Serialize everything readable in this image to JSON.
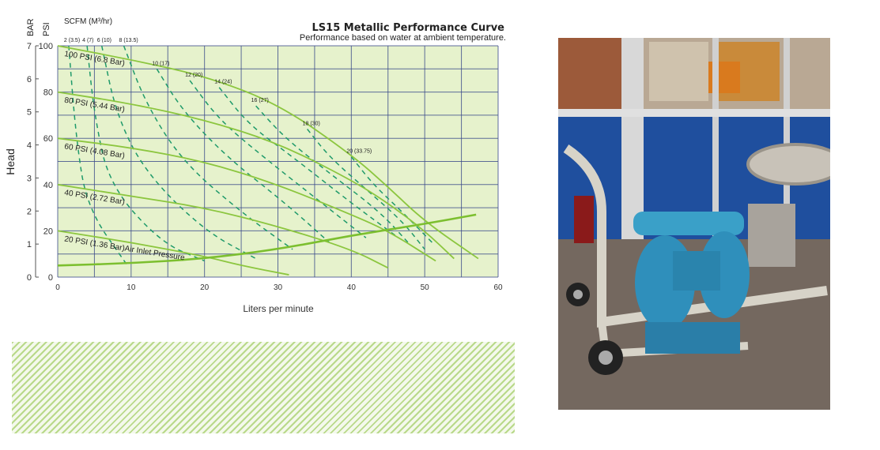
{
  "chart_data": {
    "type": "line",
    "title": "LS15 Metallic Performance Curve",
    "subtitle": "Performance based on water at ambient temperature.",
    "xlabel": "Liters per minute",
    "ylabel": "Head",
    "y_units_left": "BAR",
    "y_units_right": "PSI",
    "consumption_header": "SCFM (M³/hr)",
    "xlim": [
      0,
      60
    ],
    "ylim_psi": [
      0,
      100
    ],
    "ylim_bar": [
      0,
      7
    ],
    "x_ticks": [
      "0",
      "10",
      "20",
      "30",
      "40",
      "50",
      "60"
    ],
    "psi_ticks": [
      "0",
      "20",
      "40",
      "60",
      "80",
      "100"
    ],
    "bar_ticks": [
      "0",
      "1",
      "2",
      "3",
      "4",
      "5",
      "6",
      "7"
    ],
    "grid": true,
    "colors": {
      "background": "#e6f2cc",
      "grid": "#3a4a8a",
      "pressure_curves": "#8cc63f",
      "air_curves": "#1f9a6a"
    },
    "pressure_series": [
      {
        "name": "100 PSI (6.8 Bar)",
        "points": [
          [
            0,
            100
          ],
          [
            10,
            94
          ],
          [
            20,
            87
          ],
          [
            30,
            75
          ],
          [
            40,
            53
          ],
          [
            45,
            39
          ],
          [
            50,
            24
          ],
          [
            57.3,
            8
          ]
        ]
      },
      {
        "name": "80 PSI (5.44 Bar)",
        "points": [
          [
            0,
            80
          ],
          [
            10,
            75
          ],
          [
            20,
            68
          ],
          [
            30,
            58
          ],
          [
            40,
            42
          ],
          [
            45,
            32
          ],
          [
            50,
            20
          ],
          [
            54,
            8
          ]
        ]
      },
      {
        "name": "60 PSI (4.08 Bar)",
        "points": [
          [
            0,
            60
          ],
          [
            10,
            56
          ],
          [
            20,
            50
          ],
          [
            30,
            40
          ],
          [
            40,
            27
          ],
          [
            45,
            20
          ],
          [
            51.5,
            7
          ]
        ]
      },
      {
        "name": "40 PSI (2.72 Bar)",
        "points": [
          [
            0,
            40
          ],
          [
            10,
            35
          ],
          [
            20,
            30
          ],
          [
            30,
            22
          ],
          [
            40,
            12
          ],
          [
            45,
            4
          ]
        ]
      },
      {
        "name": "20 PSI (1.36 Bar)Air Inlet Pressure",
        "points": [
          [
            0,
            20
          ],
          [
            10,
            15
          ],
          [
            20,
            9
          ],
          [
            25,
            5
          ],
          [
            31.5,
            1
          ]
        ]
      }
    ],
    "npsh_curve": {
      "points": [
        [
          0,
          5
        ],
        [
          10,
          6
        ],
        [
          20,
          8
        ],
        [
          30,
          12
        ],
        [
          40,
          18
        ],
        [
          50,
          23
        ],
        [
          57,
          27
        ]
      ]
    },
    "air_consumption_series": [
      {
        "name": "2 (3.5)",
        "points": [
          [
            1.5,
            100
          ],
          [
            2.5,
            60
          ],
          [
            4,
            30
          ],
          [
            9.5,
            5
          ]
        ]
      },
      {
        "name": "4 (7)",
        "points": [
          [
            4,
            100
          ],
          [
            5,
            70
          ],
          [
            7,
            40
          ],
          [
            14,
            15
          ],
          [
            20,
            7
          ]
        ]
      },
      {
        "name": "6 (10)",
        "points": [
          [
            6,
            100
          ],
          [
            8,
            70
          ],
          [
            12,
            45
          ],
          [
            20,
            20
          ],
          [
            27,
            8
          ]
        ]
      },
      {
        "name": "8 (13.5)",
        "points": [
          [
            9,
            100
          ],
          [
            12,
            75
          ],
          [
            17,
            50
          ],
          [
            25,
            28
          ],
          [
            32,
            12
          ]
        ]
      },
      {
        "name": "10 (17)",
        "points": [
          [
            13.5,
            90
          ],
          [
            17,
            72
          ],
          [
            23,
            52
          ],
          [
            31,
            32
          ],
          [
            37,
            15
          ]
        ]
      },
      {
        "name": "12 (20)",
        "points": [
          [
            18,
            85
          ],
          [
            22,
            68
          ],
          [
            28,
            52
          ],
          [
            36,
            32
          ],
          [
            42,
            17
          ]
        ]
      },
      {
        "name": "14 (24)",
        "points": [
          [
            22,
            82
          ],
          [
            26,
            66
          ],
          [
            32,
            52
          ],
          [
            40,
            32
          ],
          [
            46,
            18
          ]
        ]
      },
      {
        "name": "16 (27)",
        "points": [
          [
            27,
            74
          ],
          [
            31,
            60
          ],
          [
            37,
            45
          ],
          [
            44,
            28
          ],
          [
            48,
            14
          ]
        ]
      },
      {
        "name": "18 (30)",
        "points": [
          [
            34,
            64
          ],
          [
            37,
            52
          ],
          [
            42,
            38
          ],
          [
            47,
            24
          ],
          [
            50,
            12
          ]
        ]
      },
      {
        "name": "20 (33.75)",
        "points": [
          [
            40,
            52
          ],
          [
            43,
            40
          ],
          [
            47,
            28
          ],
          [
            51,
            15
          ]
        ]
      }
    ]
  }
}
